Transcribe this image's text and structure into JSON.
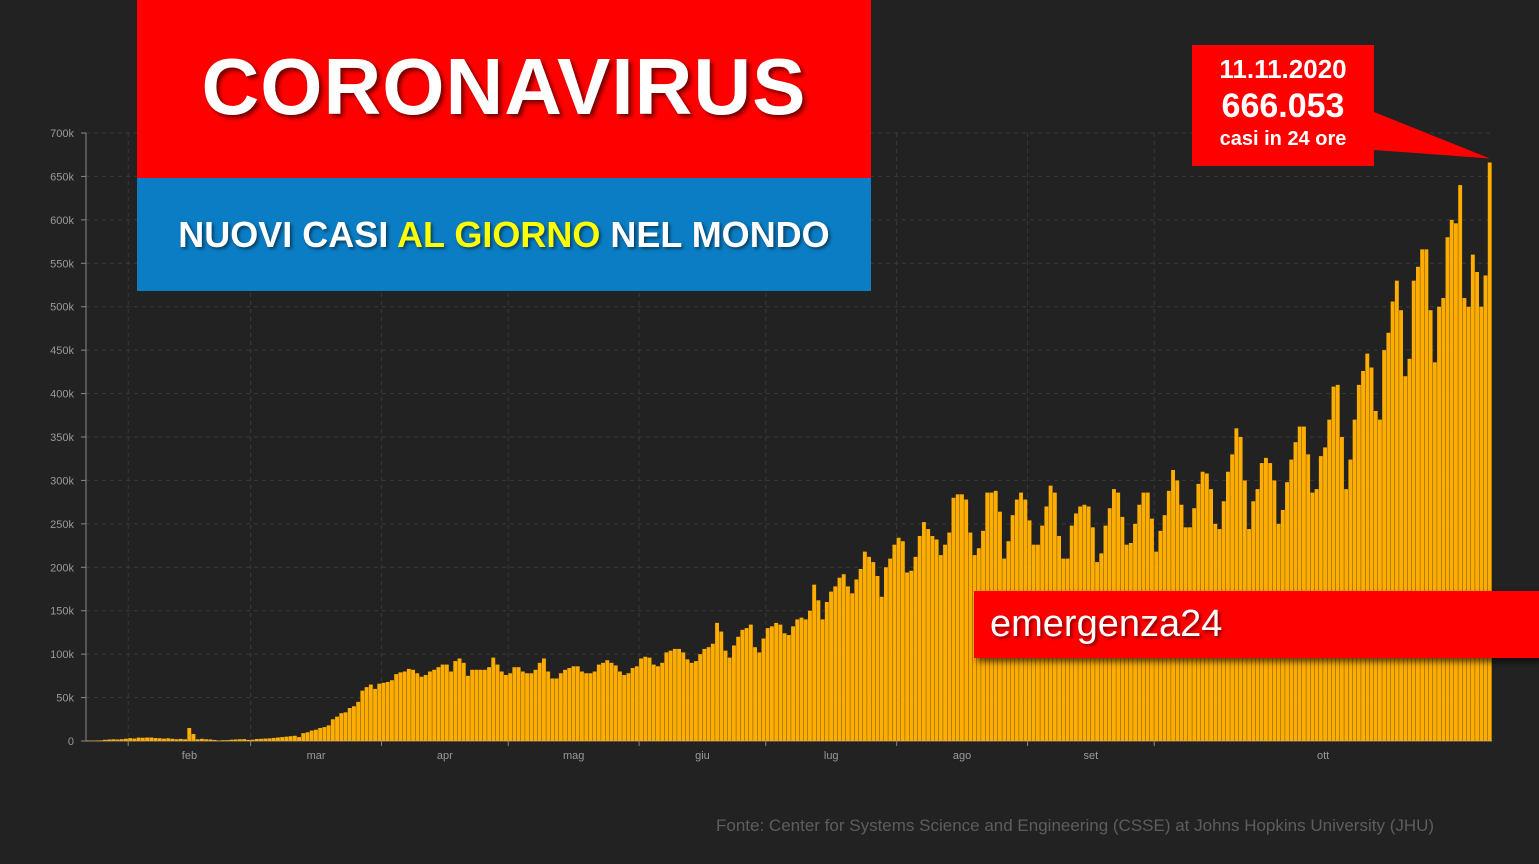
{
  "header": {
    "title": "CORONAVIRUS",
    "subtitle_part1": "NUOVI CASI ",
    "subtitle_highlight": "AL GIORNO",
    "subtitle_part2": " NEL MONDO"
  },
  "callout": {
    "date": "11.11.2020",
    "value": "666.053",
    "note": "casi in 24 ore"
  },
  "brand": {
    "label": "emergenza24"
  },
  "footer": {
    "source": "Fonte: Center for Systems Science and Engineering (CSSE) at Johns Hopkins University (JHU)"
  },
  "colors": {
    "background": "#222222",
    "bar": "#ffad00",
    "title_bg": "#ff0000",
    "subtitle_bg": "#0b7dc4",
    "highlight_text": "#ffff00",
    "axis_text": "#9a9a9a",
    "grid": "#3a3a3a"
  },
  "chart_data": {
    "type": "bar",
    "title": "",
    "xlabel": "",
    "ylabel": "",
    "ylim": [
      0,
      700000
    ],
    "yticks": [
      0,
      50000,
      100000,
      150000,
      200000,
      250000,
      300000,
      350000,
      400000,
      450000,
      500000,
      550000,
      600000,
      650000,
      700000
    ],
    "ytick_labels": [
      "0",
      "50k",
      "100k",
      "150k",
      "200k",
      "250k",
      "300k",
      "350k",
      "400k",
      "450k",
      "500k",
      "550k",
      "600k",
      "650k",
      "700k"
    ],
    "x_start": "2020-01-22",
    "x_end": "2020-11-11",
    "xtick_labels": [
      "feb",
      "mar",
      "apr",
      "mag",
      "giu",
      "lug",
      "ago",
      "set",
      "ott"
    ],
    "xtick_dates": [
      "2020-02-01",
      "2020-03-01",
      "2020-04-01",
      "2020-05-01",
      "2020-06-01",
      "2020-07-01",
      "2020-08-01",
      "2020-09-01",
      "2020-10-01"
    ],
    "grid": true,
    "series": [
      {
        "values": [
          500,
          400,
          600,
          700,
          1400,
          1700,
          2000,
          1700,
          2100,
          2600,
          3300,
          2800,
          3900,
          3700,
          4000,
          4000,
          3400,
          3200,
          2700,
          3100,
          2600,
          2000,
          2400,
          2000,
          15000,
          8000,
          2000,
          2500,
          2000,
          1800,
          1200,
          600,
          900,
          1000,
          1500,
          1800,
          2000,
          2200,
          1300,
          1500,
          2300,
          2500,
          2800,
          3000,
          3500,
          4000,
          4500,
          5000,
          5500,
          6000,
          4500,
          9000,
          10000,
          12000,
          13000,
          15000,
          16000,
          18000,
          25000,
          28000,
          32000,
          33000,
          38000,
          40000,
          45000,
          58000,
          62000,
          65000,
          60000,
          66000,
          67000,
          68000,
          70000,
          77000,
          79000,
          80000,
          83000,
          82000,
          78000,
          74000,
          76000,
          80000,
          82000,
          85000,
          88000,
          88000,
          80000,
          92000,
          95000,
          90000,
          75000,
          82000,
          82000,
          82000,
          82000,
          85000,
          96000,
          88000,
          80000,
          76000,
          78000,
          85000,
          85000,
          80000,
          78000,
          78000,
          82000,
          90000,
          95000,
          80000,
          72000,
          72000,
          78000,
          82000,
          84000,
          86000,
          86000,
          80000,
          78000,
          78000,
          80000,
          88000,
          90000,
          93000,
          90000,
          87000,
          80000,
          76000,
          78000,
          84000,
          86000,
          95000,
          97000,
          96000,
          88000,
          86000,
          90000,
          102000,
          104000,
          106000,
          106000,
          102000,
          94000,
          90000,
          92000,
          100000,
          106000,
          108000,
          112000,
          136000,
          126000,
          104000,
          96000,
          110000,
          120000,
          128000,
          130000,
          134000,
          108000,
          102000,
          118000,
          130000,
          132000,
          136000,
          134000,
          124000,
          122000,
          132000,
          140000,
          142000,
          140000,
          150000,
          180000,
          162000,
          140000,
          160000,
          172000,
          178000,
          188000,
          192000,
          178000,
          170000,
          186000,
          198000,
          218000,
          212000,
          206000,
          190000,
          166000,
          200000,
          210000,
          226000,
          234000,
          230000,
          194000,
          196000,
          212000,
          236000,
          252000,
          244000,
          236000,
          232000,
          214000,
          226000,
          240000,
          280000,
          284000,
          284000,
          278000,
          240000,
          214000,
          222000,
          242000,
          286000,
          286000,
          288000,
          264000,
          210000,
          230000,
          260000,
          278000,
          286000,
          278000,
          254000,
          226000,
          226000,
          248000,
          270000,
          294000,
          286000,
          236000,
          210000,
          210000,
          248000,
          262000,
          270000,
          272000,
          270000,
          246000,
          206000,
          216000,
          248000,
          268000,
          290000,
          286000,
          258000,
          226000,
          228000,
          250000,
          272000,
          286000,
          286000,
          256000,
          218000,
          242000,
          260000,
          288000,
          312000,
          300000,
          272000,
          246000,
          246000,
          268000,
          296000,
          310000,
          308000,
          290000,
          250000,
          244000,
          276000,
          310000,
          330000,
          360000,
          350000,
          300000,
          244000,
          276000,
          290000,
          320000,
          326000,
          320000,
          300000,
          250000,
          266000,
          298000,
          324000,
          344000,
          362000,
          362000,
          330000,
          286000,
          290000,
          328000,
          338000,
          370000,
          408000,
          410000,
          350000,
          290000,
          324000,
          370000,
          410000,
          426000,
          446000,
          430000,
          380000,
          370000,
          450000,
          470000,
          506000,
          530000,
          496000,
          420000,
          440000,
          530000,
          546000,
          566000,
          566000,
          496000,
          436000,
          500000,
          510000,
          580000,
          600000,
          596000,
          640000,
          510000,
          500000,
          560000,
          540000,
          500000,
          536000,
          666053
        ]
      }
    ]
  }
}
